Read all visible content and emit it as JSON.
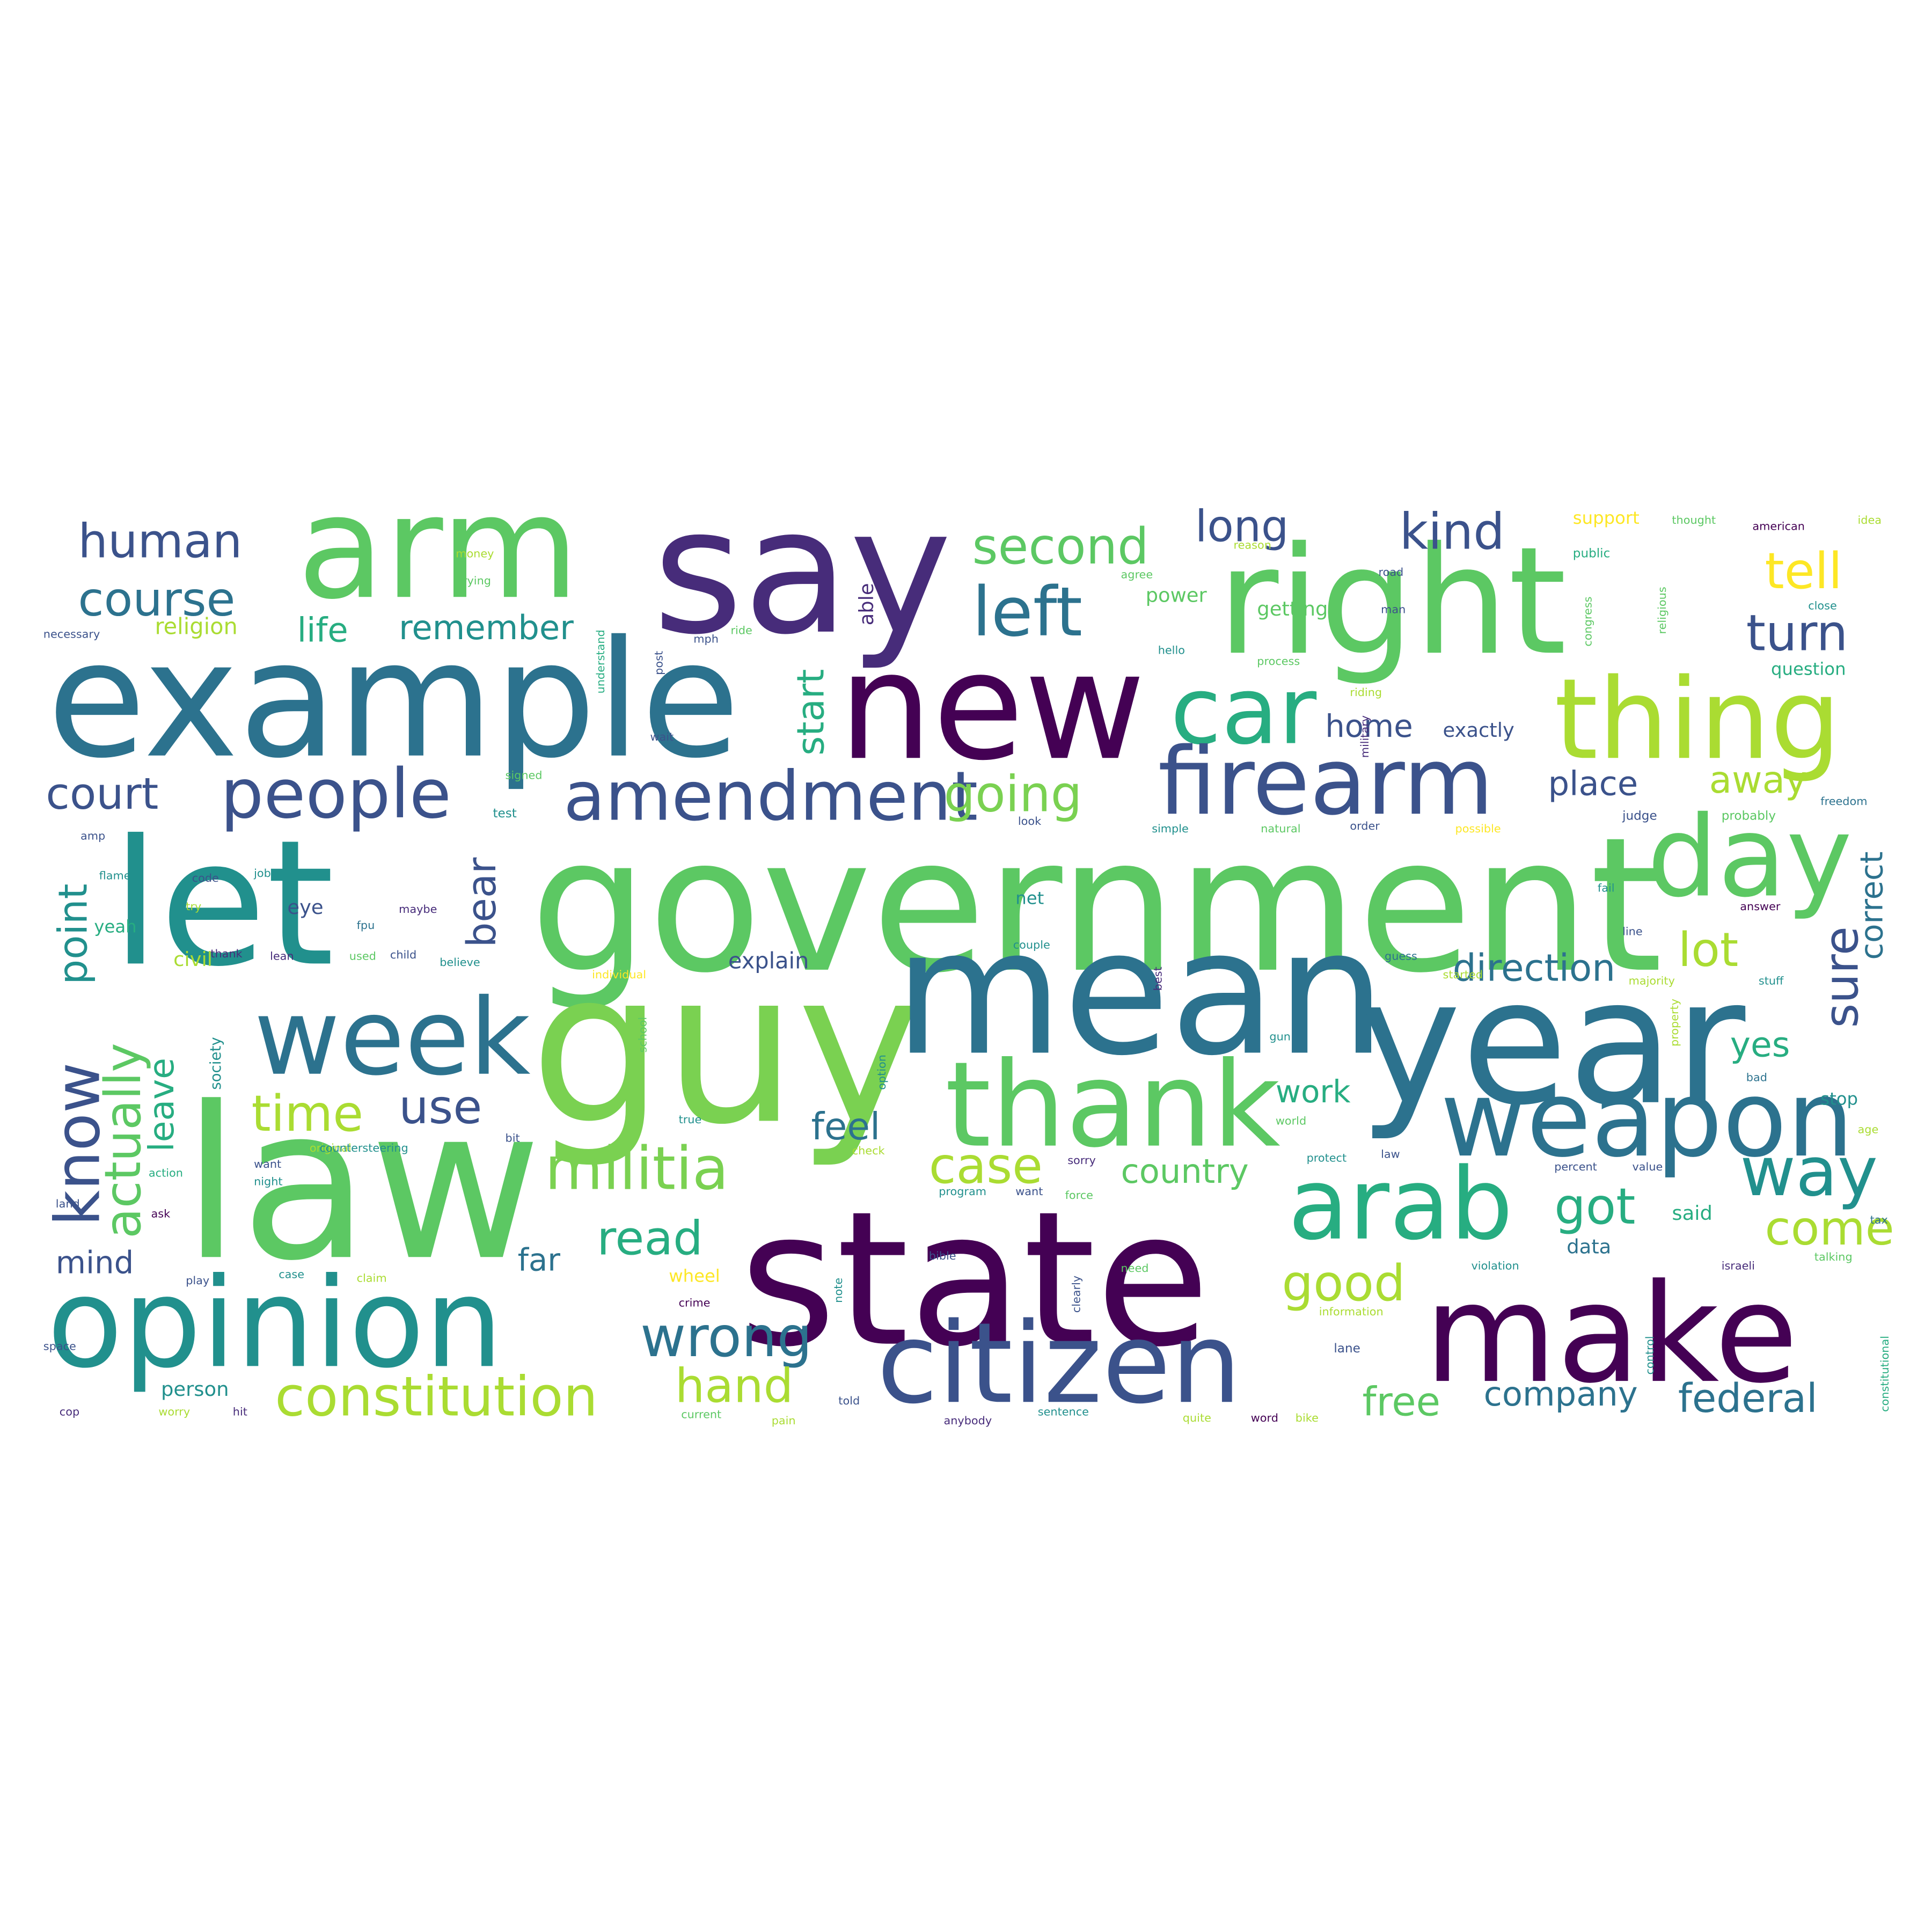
{
  "palette": [
    "#440154",
    "#472c7a",
    "#3b528b",
    "#2c728e",
    "#21908d",
    "#27ad81",
    "#5cc863",
    "#aadc32",
    "#fde725"
  ],
  "words": [
    {
      "text": "government",
      "color": "#5cc863"
    },
    {
      "text": "guy",
      "color": "#7ad151"
    },
    {
      "text": "mean",
      "color": "#2c728e"
    },
    {
      "text": "state",
      "color": "#440154"
    },
    {
      "text": "law",
      "color": "#5cc863"
    },
    {
      "text": "example",
      "color": "#2c728e"
    },
    {
      "text": "say",
      "color": "#472c7a"
    },
    {
      "text": "arm",
      "color": "#5cc863"
    },
    {
      "text": "right",
      "color": "#5cc863"
    },
    {
      "text": "new",
      "color": "#440154"
    },
    {
      "text": "let",
      "color": "#21908d"
    },
    {
      "text": "year",
      "color": "#2c728e"
    },
    {
      "text": "make",
      "color": "#440154"
    },
    {
      "text": "opinion",
      "color": "#21908d"
    },
    {
      "text": "thank",
      "color": "#5cc863"
    },
    {
      "text": "citizen",
      "color": "#3b528b"
    },
    {
      "text": "week",
      "color": "#2c728e"
    },
    {
      "text": "thing",
      "color": "#aadc32"
    },
    {
      "text": "weapon",
      "color": "#2c728e"
    },
    {
      "text": "arab",
      "color": "#27ad81"
    },
    {
      "text": "day",
      "color": "#5cc863"
    },
    {
      "text": "car",
      "color": "#27ad81"
    },
    {
      "text": "firearm",
      "color": "#3b528b"
    },
    {
      "text": "left",
      "color": "#2c728e"
    },
    {
      "text": "amendment",
      "color": "#3b528b"
    },
    {
      "text": "people",
      "color": "#3b528b"
    },
    {
      "text": "militia",
      "color": "#7ad151"
    },
    {
      "text": "constitution",
      "color": "#aadc32"
    },
    {
      "text": "wrong",
      "color": "#2c728e"
    },
    {
      "text": "way",
      "color": "#21908d"
    },
    {
      "text": "second",
      "color": "#5cc863"
    },
    {
      "text": "kind",
      "color": "#3b528b"
    },
    {
      "text": "human",
      "color": "#3b528b"
    },
    {
      "text": "course",
      "color": "#2c728e"
    },
    {
      "text": "court",
      "color": "#3b528b"
    },
    {
      "text": "going",
      "color": "#7ad151"
    },
    {
      "text": "know",
      "color": "#3b528b"
    },
    {
      "text": "actually",
      "color": "#5cc863"
    },
    {
      "text": "time",
      "color": "#aadc32"
    },
    {
      "text": "use",
      "color": "#3b528b"
    },
    {
      "text": "good",
      "color": "#aadc32"
    },
    {
      "text": "read",
      "color": "#27ad81"
    },
    {
      "text": "hand",
      "color": "#aadc32"
    },
    {
      "text": "case",
      "color": "#aadc32"
    },
    {
      "text": "got",
      "color": "#27ad81"
    },
    {
      "text": "come",
      "color": "#aadc32"
    },
    {
      "text": "tell",
      "color": "#fde725"
    },
    {
      "text": "turn",
      "color": "#3b528b"
    },
    {
      "text": "lot",
      "color": "#aadc32"
    },
    {
      "text": "sure",
      "color": "#3b528b"
    },
    {
      "text": "feel",
      "color": "#2c728e"
    },
    {
      "text": "free",
      "color": "#5cc863"
    },
    {
      "text": "federal",
      "color": "#2c728e"
    },
    {
      "text": "long",
      "color": "#3b528b"
    },
    {
      "text": "bear",
      "color": "#3b528b"
    },
    {
      "text": "point",
      "color": "#21908d"
    },
    {
      "text": "leave",
      "color": "#27ad81"
    },
    {
      "text": "start",
      "color": "#27ad81"
    },
    {
      "text": "direction",
      "color": "#2c728e"
    },
    {
      "text": "company",
      "color": "#2c728e"
    },
    {
      "text": "country",
      "color": "#5cc863"
    },
    {
      "text": "life",
      "color": "#27ad81"
    },
    {
      "text": "remember",
      "color": "#21908d"
    },
    {
      "text": "place",
      "color": "#3b528b"
    },
    {
      "text": "away",
      "color": "#aadc32"
    },
    {
      "text": "home",
      "color": "#3b528b"
    },
    {
      "text": "work",
      "color": "#27ad81"
    },
    {
      "text": "yes",
      "color": "#27ad81"
    },
    {
      "text": "correct",
      "color": "#2c728e"
    },
    {
      "text": "mind",
      "color": "#3b528b"
    },
    {
      "text": "far",
      "color": "#2c728e"
    },
    {
      "text": "explain",
      "color": "#3b528b"
    },
    {
      "text": "religion",
      "color": "#aadc32"
    },
    {
      "text": "support",
      "color": "#fde725"
    },
    {
      "text": "yeah",
      "color": "#27ad81"
    },
    {
      "text": "eye",
      "color": "#3b528b"
    },
    {
      "text": "civil",
      "color": "#aadc32"
    },
    {
      "text": "person",
      "color": "#21908d"
    },
    {
      "text": "question",
      "color": "#27ad81"
    },
    {
      "text": "power",
      "color": "#5cc863"
    },
    {
      "text": "getting",
      "color": "#5cc863"
    },
    {
      "text": "exactly",
      "color": "#3b528b"
    },
    {
      "text": "able",
      "color": "#472c7a"
    },
    {
      "text": "said",
      "color": "#27ad81"
    },
    {
      "text": "data",
      "color": "#2c728e"
    },
    {
      "text": "society",
      "color": "#21908d"
    },
    {
      "text": "wheel",
      "color": "#fde725"
    },
    {
      "text": "stop",
      "color": "#21908d"
    },
    {
      "text": "net",
      "color": "#21908d"
    },
    {
      "text": "probably",
      "color": "#5cc863"
    },
    {
      "text": "judge",
      "color": "#3b528b"
    },
    {
      "text": "freedom",
      "color": "#2c728e"
    },
    {
      "text": "public",
      "color": "#27ad81"
    },
    {
      "text": "money",
      "color": "#aadc32"
    },
    {
      "text": "trying",
      "color": "#5cc863"
    },
    {
      "text": "necessary",
      "color": "#3b528b"
    },
    {
      "text": "reason",
      "color": "#aadc32"
    },
    {
      "text": "agree",
      "color": "#5cc863"
    },
    {
      "text": "road",
      "color": "#3b528b"
    },
    {
      "text": "thought",
      "color": "#5cc863"
    },
    {
      "text": "american",
      "color": "#440154"
    },
    {
      "text": "idea",
      "color": "#aadc32"
    },
    {
      "text": "close",
      "color": "#21908d"
    },
    {
      "text": "religious",
      "color": "#5cc863"
    },
    {
      "text": "congress",
      "color": "#5cc863"
    },
    {
      "text": "process",
      "color": "#5cc863"
    },
    {
      "text": "hello",
      "color": "#21908d"
    },
    {
      "text": "military",
      "color": "#472c7a"
    },
    {
      "text": "ride",
      "color": "#5cc863"
    },
    {
      "text": "mph",
      "color": "#3b528b"
    },
    {
      "text": "riding",
      "color": "#aadc32"
    },
    {
      "text": "natural",
      "color": "#5cc863"
    },
    {
      "text": "simple",
      "color": "#21908d"
    },
    {
      "text": "order",
      "color": "#3b528b"
    },
    {
      "text": "possible",
      "color": "#fde725"
    },
    {
      "text": "test",
      "color": "#21908d"
    },
    {
      "text": "signed",
      "color": "#5cc863"
    },
    {
      "text": "look",
      "color": "#3b528b"
    },
    {
      "text": "couple",
      "color": "#21908d"
    },
    {
      "text": "maybe",
      "color": "#472c7a"
    },
    {
      "text": "believe",
      "color": "#21908d"
    },
    {
      "text": "child",
      "color": "#3b528b"
    },
    {
      "text": "used",
      "color": "#5cc863"
    },
    {
      "text": "lean",
      "color": "#472c7a"
    },
    {
      "text": "code",
      "color": "#3b528b"
    },
    {
      "text": "job",
      "color": "#21908d"
    },
    {
      "text": "try",
      "color": "#aadc32"
    },
    {
      "text": "individual",
      "color": "#fde725"
    },
    {
      "text": "school",
      "color": "#5cc863"
    },
    {
      "text": "option",
      "color": "#21908d"
    },
    {
      "text": "fail",
      "color": "#21908d"
    },
    {
      "text": "answer",
      "color": "#440154"
    },
    {
      "text": "line",
      "color": "#3b528b"
    },
    {
      "text": "guess",
      "color": "#2c728e"
    },
    {
      "text": "started",
      "color": "#aadc32"
    },
    {
      "text": "majority",
      "color": "#aadc32"
    },
    {
      "text": "stuff",
      "color": "#21908d"
    },
    {
      "text": "property",
      "color": "#aadc32"
    },
    {
      "text": "bad",
      "color": "#2c728e"
    },
    {
      "text": "age",
      "color": "#aadc32"
    },
    {
      "text": "tax",
      "color": "#2c728e"
    },
    {
      "text": "talking",
      "color": "#5cc863"
    },
    {
      "text": "israeli",
      "color": "#472c7a"
    },
    {
      "text": "violation",
      "color": "#21908d"
    },
    {
      "text": "information",
      "color": "#aadc32"
    },
    {
      "text": "lane",
      "color": "#3b528b"
    },
    {
      "text": "constitutional",
      "color": "#27ad81"
    },
    {
      "text": "control",
      "color": "#21908d"
    },
    {
      "text": "percent",
      "color": "#3b528b"
    },
    {
      "text": "value",
      "color": "#3b528b"
    },
    {
      "text": "world",
      "color": "#5cc863"
    },
    {
      "text": "protect",
      "color": "#21908d"
    },
    {
      "text": "law",
      "color": "#3b528b"
    },
    {
      "text": "sorry",
      "color": "#472c7a"
    },
    {
      "text": "force",
      "color": "#5cc863"
    },
    {
      "text": "program",
      "color": "#21908d"
    },
    {
      "text": "want",
      "color": "#3b528b"
    },
    {
      "text": "check",
      "color": "#aadc32"
    },
    {
      "text": "true",
      "color": "#21908d"
    },
    {
      "text": "bible",
      "color": "#3b528b"
    },
    {
      "text": "need",
      "color": "#5cc863"
    },
    {
      "text": "clearly",
      "color": "#3b528b"
    },
    {
      "text": "claim",
      "color": "#aadc32"
    },
    {
      "text": "case",
      "color": "#21908d"
    },
    {
      "text": "play",
      "color": "#3b528b"
    },
    {
      "text": "crime",
      "color": "#440154"
    },
    {
      "text": "note",
      "color": "#21908d"
    },
    {
      "text": "told",
      "color": "#3b528b"
    },
    {
      "text": "current",
      "color": "#5cc863"
    },
    {
      "text": "pain",
      "color": "#aadc32"
    },
    {
      "text": "anybody",
      "color": "#472c7a"
    },
    {
      "text": "sentence",
      "color": "#21908d"
    },
    {
      "text": "quite",
      "color": "#aadc32"
    },
    {
      "text": "word",
      "color": "#440154"
    },
    {
      "text": "bike",
      "color": "#aadc32"
    },
    {
      "text": "space",
      "color": "#3b528b"
    },
    {
      "text": "cop",
      "color": "#472c7a"
    },
    {
      "text": "worry",
      "color": "#aadc32"
    },
    {
      "text": "hit",
      "color": "#472c7a"
    },
    {
      "text": "land",
      "color": "#3b528b"
    },
    {
      "text": "ask",
      "color": "#440154"
    },
    {
      "text": "action",
      "color": "#27ad81"
    },
    {
      "text": "want",
      "color": "#3b528b"
    },
    {
      "text": "night",
      "color": "#21908d"
    },
    {
      "text": "original",
      "color": "#aadc32"
    },
    {
      "text": "countersteering",
      "color": "#21908d"
    },
    {
      "text": "bit",
      "color": "#3b528b"
    },
    {
      "text": "gun",
      "color": "#21908d"
    },
    {
      "text": "best",
      "color": "#472c7a"
    },
    {
      "text": "fpu",
      "color": "#2c728e"
    },
    {
      "text": "thank",
      "color": "#472c7a"
    },
    {
      "text": "flame",
      "color": "#21908d"
    },
    {
      "text": "amp",
      "color": "#3b528b"
    },
    {
      "text": "post",
      "color": "#3b528b"
    },
    {
      "text": "understand",
      "color": "#27ad81"
    },
    {
      "text": "wait",
      "color": "#3b528b"
    },
    {
      "text": "man",
      "color": "#3b528b"
    }
  ]
}
